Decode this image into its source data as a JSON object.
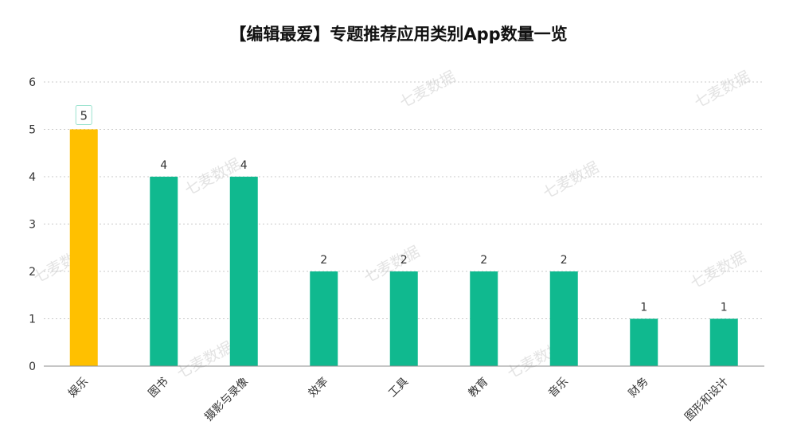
{
  "colors": {
    "bar_default": "#10b98f",
    "bar_highlight": "#ffc000",
    "grid": "#c9c9c9",
    "axis": "#8c8c8c",
    "text": "#333333",
    "watermark": "#e3e3e3",
    "badge_border": "#9be3cf"
  },
  "watermark": "七麦数据",
  "chart_data": {
    "type": "bar",
    "title": "【编辑最爱】专题推荐应用类别App数量一览",
    "xlabel": "",
    "ylabel": "",
    "ylim": [
      0,
      6
    ],
    "yticks": [
      "0",
      "1",
      "2",
      "3",
      "4",
      "5",
      "6"
    ],
    "grid": true,
    "legend": "none",
    "highlight_index": 0,
    "categories": [
      "娱乐",
      "图书",
      "摄影与录像",
      "效率",
      "工具",
      "教育",
      "音乐",
      "财务",
      "图形和设计"
    ],
    "values": [
      5,
      4,
      4,
      2,
      2,
      2,
      2,
      1,
      1
    ],
    "data_labels": [
      "5",
      "4",
      "4",
      "2",
      "2",
      "2",
      "2",
      "1",
      "1"
    ]
  }
}
